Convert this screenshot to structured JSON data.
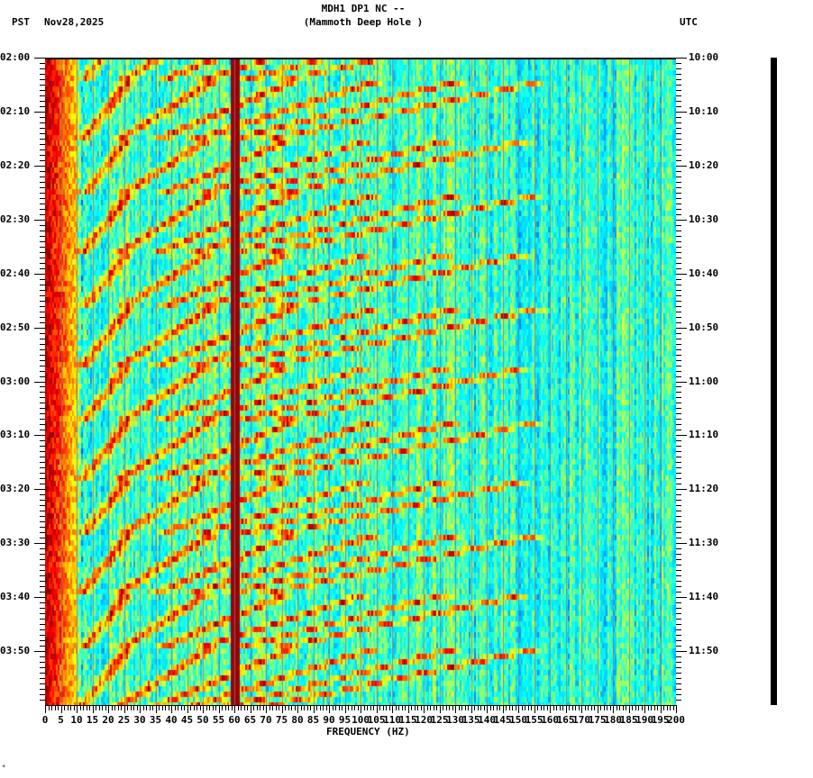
{
  "header": {
    "station_line": "MDH1 DP1 NC --",
    "location_line": "(Mammoth Deep Hole )",
    "left_timezone": "PST",
    "date": "Nov28,2025",
    "right_timezone": "UTC"
  },
  "footer": {
    "corner_mark": "*"
  },
  "chart_data": {
    "type": "heatmap",
    "title": "MDH1 DP1 NC -- (Mammoth Deep Hole )",
    "subtitle": "Nov28,2025",
    "xlabel": "FREQUENCY (HZ)",
    "ylabel_left": "PST",
    "ylabel_right": "UTC",
    "xlim": [
      0,
      200
    ],
    "x_ticks": [
      0,
      5,
      10,
      15,
      20,
      25,
      30,
      35,
      40,
      45,
      50,
      55,
      60,
      65,
      70,
      75,
      80,
      85,
      90,
      95,
      100,
      105,
      110,
      115,
      120,
      125,
      130,
      135,
      140,
      145,
      150,
      155,
      160,
      165,
      170,
      175,
      180,
      185,
      190,
      195,
      200
    ],
    "x_minor_tick_step": 1,
    "y_ticks_left": [
      "02:00",
      "02:10",
      "02:20",
      "02:30",
      "02:40",
      "02:50",
      "03:00",
      "03:10",
      "03:20",
      "03:30",
      "03:40",
      "03:50"
    ],
    "y_ticks_right": [
      "10:00",
      "10:10",
      "10:20",
      "10:30",
      "10:40",
      "10:50",
      "11:00",
      "11:10",
      "11:20",
      "11:30",
      "11:40",
      "11:50"
    ],
    "y_minor_tick_minutes": 1,
    "time_span_minutes": 120,
    "colormap": [
      "#00008b",
      "#0050ff",
      "#00c8ff",
      "#00ffff",
      "#7fff7f",
      "#ffff00",
      "#ff8000",
      "#ff0000",
      "#8b0000"
    ],
    "features": {
      "persistent_line_hz": 60,
      "low_freq_high_energy_band_hz": [
        0,
        10
      ],
      "sweep_period_minutes": 10.5,
      "sweep_description": "repeating upward-curving harmonic chirps from ~20 Hz to ~130 Hz",
      "grid_line_spacing_hz": 5
    }
  }
}
